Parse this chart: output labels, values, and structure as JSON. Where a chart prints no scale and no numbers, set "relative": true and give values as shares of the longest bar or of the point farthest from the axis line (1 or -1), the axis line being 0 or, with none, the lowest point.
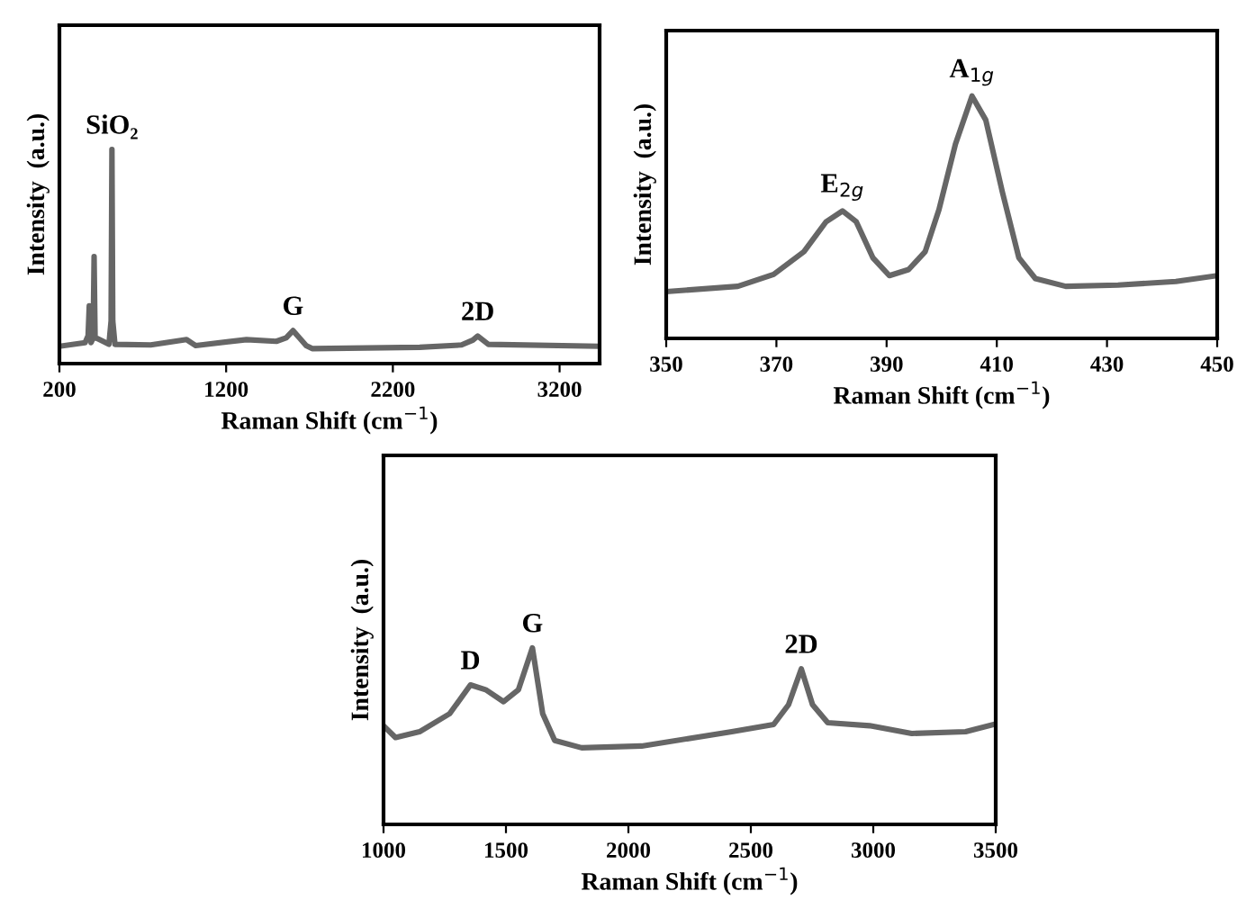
{
  "chart_data": [
    {
      "type": "line",
      "relative": true,
      "xlabel": "Raman Shift (cm$^{−1}$)",
      "ylabel": "Intensity  (a.u.)",
      "xlim": [
        200,
        3440
      ],
      "xticks": [
        200,
        1200,
        2200,
        3200
      ],
      "grid": false,
      "legend": false,
      "marker": "none",
      "line_style": "solid",
      "series": [
        {
          "color": "#666666",
          "x": [
            200,
            354,
            372,
            379,
            386,
            390,
            402,
            408,
            414,
            426,
            462,
            497,
            510,
            515,
            520,
            533,
            748,
            963,
            1017,
            1322,
            1501,
            1560,
            1601,
            1640,
            1680,
            1716,
            2361,
            2612,
            2680,
            2709,
            2740,
            2773,
            3436
          ],
          "values": [
            0.081,
            0.098,
            0.13,
            0.27,
            0.13,
            0.098,
            0.12,
            0.5,
            0.12,
            0.118,
            0.104,
            0.09,
            0.2,
            1,
            0.2,
            0.09,
            0.087,
            0.112,
            0.084,
            0.112,
            0.104,
            0.12,
            0.154,
            0.12,
            0.084,
            0.07,
            0.076,
            0.087,
            0.11,
            0.129,
            0.11,
            0.09,
            0.081
          ]
        }
      ],
      "annotations": [
        {
          "text": "SiO₂",
          "x": 515,
          "y": 1
        },
        {
          "text": "G",
          "x": 1601,
          "y": 0.154
        },
        {
          "text": "2D",
          "x": 2709,
          "y": 0.129
        }
      ]
    },
    {
      "type": "line",
      "relative": true,
      "xlabel": "Raman Shift (cm$^{−1}$)",
      "ylabel": "Intensity  (a.u.)",
      "xlim": [
        350,
        450
      ],
      "xticks": [
        350,
        370,
        390,
        410,
        430,
        450
      ],
      "grid": false,
      "legend": false,
      "marker": "none",
      "line_style": "solid",
      "series": [
        {
          "color": "#666666",
          "x": [
            350,
            363,
            369.5,
            375,
            379,
            382,
            384.5,
            387.5,
            390.5,
            394,
            397,
            399.5,
            402.5,
            405.5,
            408,
            411,
            414,
            417,
            422.5,
            432,
            442.5,
            450
          ],
          "values": [
            0.193,
            0.215,
            0.264,
            0.358,
            0.481,
            0.526,
            0.481,
            0.333,
            0.259,
            0.284,
            0.358,
            0.531,
            0.802,
            1,
            0.901,
            0.605,
            0.333,
            0.247,
            0.215,
            0.22,
            0.235,
            0.259
          ]
        }
      ],
      "annotations": [
        {
          "text": "E$_{2g}$",
          "x": 382,
          "y": 0.526
        },
        {
          "text": "A$_{1g}$",
          "x": 405.5,
          "y": 1
        }
      ]
    },
    {
      "type": "line",
      "relative": true,
      "xlabel": "Raman Shift (cm$^{−1}$)",
      "ylabel": "Intensity  (a.u.)",
      "xlim": [
        1000,
        3500
      ],
      "xticks": [
        1000,
        1500,
        2000,
        2500,
        3000,
        3500
      ],
      "grid": false,
      "legend": false,
      "marker": "none",
      "line_style": "solid",
      "series": [
        {
          "color": "#666666",
          "x": [
            1000,
            1049,
            1147,
            1270,
            1355,
            1417,
            1490,
            1551,
            1608,
            1650,
            1699,
            1809,
            2054,
            2422,
            2593,
            2654,
            2706,
            2752,
            2814,
            2985,
            3157,
            3377,
            3500
          ],
          "values": [
            0.559,
            0.492,
            0.525,
            0.627,
            0.79,
            0.763,
            0.695,
            0.763,
            1,
            0.627,
            0.475,
            0.434,
            0.444,
            0.525,
            0.566,
            0.678,
            0.881,
            0.678,
            0.576,
            0.559,
            0.515,
            0.525,
            0.569
          ]
        }
      ],
      "annotations": [
        {
          "text": "D",
          "x": 1355,
          "y": 0.79
        },
        {
          "text": "G",
          "x": 1608,
          "y": 1
        },
        {
          "text": "2D",
          "x": 2706,
          "y": 0.881
        }
      ]
    }
  ]
}
